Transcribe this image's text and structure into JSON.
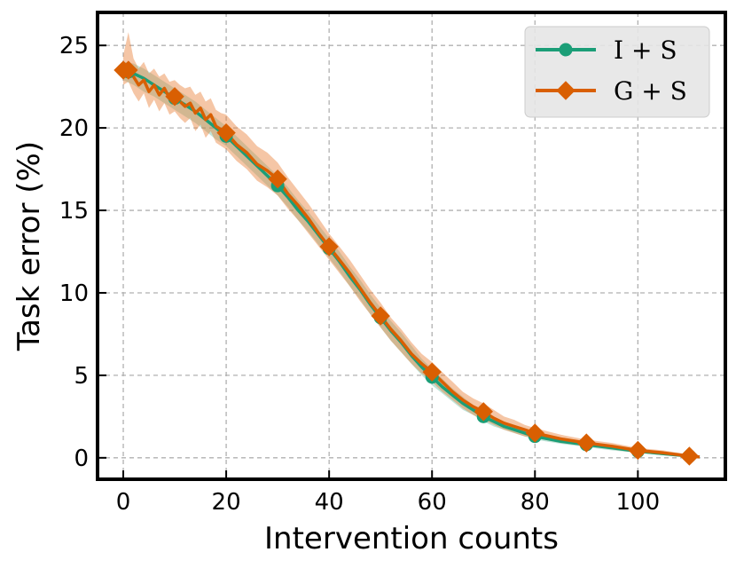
{
  "chart_data": {
    "type": "line",
    "title": "",
    "xlabel": "Intervention counts",
    "ylabel": "Task error (%)",
    "xlim": [
      -5,
      117
    ],
    "ylim": [
      -1.3,
      27
    ],
    "xticks": [
      0,
      20,
      40,
      60,
      80,
      100
    ],
    "yticks": [
      0,
      5,
      10,
      15,
      20,
      25
    ],
    "grid": true,
    "legend_position": "top-right",
    "series": [
      {
        "name": "I + S",
        "color": "#1b9e77",
        "marker": "circle",
        "x": [
          0,
          1,
          10,
          20,
          30,
          40,
          50,
          60,
          70,
          80,
          90,
          100,
          110
        ],
        "y": [
          23.5,
          23.4,
          21.8,
          19.5,
          16.5,
          12.7,
          8.5,
          4.9,
          2.5,
          1.3,
          0.8,
          0.4,
          0.1
        ],
        "line_x": [
          0,
          2,
          4,
          6,
          8,
          10,
          12,
          14,
          16,
          18,
          20,
          22,
          24,
          26,
          28,
          30,
          32,
          34,
          36,
          38,
          40,
          42,
          44,
          46,
          48,
          50,
          52,
          54,
          56,
          58,
          60,
          62,
          64,
          66,
          68,
          70,
          72,
          74,
          76,
          78,
          80,
          85,
          90,
          95,
          100,
          105,
          110,
          112
        ],
        "line_y": [
          23.5,
          23.3,
          23.0,
          22.6,
          22.2,
          21.8,
          21.4,
          21.0,
          20.5,
          20.0,
          19.5,
          18.9,
          18.3,
          17.7,
          17.1,
          16.5,
          15.8,
          15.0,
          14.3,
          13.5,
          12.7,
          11.9,
          11.0,
          10.2,
          9.3,
          8.5,
          7.7,
          7.0,
          6.2,
          5.5,
          4.9,
          4.3,
          3.8,
          3.3,
          2.9,
          2.5,
          2.2,
          1.9,
          1.7,
          1.5,
          1.3,
          1.0,
          0.8,
          0.6,
          0.4,
          0.25,
          0.1,
          0.05
        ],
        "band_lower": [
          22.9,
          22.6,
          22.2,
          21.9,
          21.5,
          21.1,
          20.7,
          20.3,
          19.8,
          19.3,
          18.9,
          18.3,
          17.7,
          17.1,
          16.5,
          15.9,
          15.2,
          14.4,
          13.7,
          12.9,
          12.1,
          11.3,
          10.4,
          9.6,
          8.7,
          7.9,
          7.1,
          6.4,
          5.7,
          5.0,
          4.4,
          3.9,
          3.4,
          2.9,
          2.6,
          2.2,
          1.9,
          1.7,
          1.5,
          1.3,
          1.1,
          0.85,
          0.65,
          0.45,
          0.3,
          0.15,
          0.03,
          0.0
        ],
        "band_upper": [
          24.0,
          23.9,
          23.6,
          23.2,
          22.8,
          22.4,
          22.0,
          21.6,
          21.1,
          20.6,
          20.1,
          19.5,
          18.9,
          18.3,
          17.7,
          17.1,
          16.4,
          15.6,
          14.9,
          14.1,
          13.3,
          12.5,
          11.6,
          10.8,
          9.9,
          9.1,
          8.3,
          7.6,
          6.8,
          6.0,
          5.4,
          4.8,
          4.2,
          3.7,
          3.2,
          2.8,
          2.5,
          2.2,
          1.9,
          1.7,
          1.5,
          1.15,
          0.95,
          0.75,
          0.5,
          0.35,
          0.17,
          0.1
        ]
      },
      {
        "name": "G + S",
        "color": "#d95f02",
        "marker": "diamond",
        "x": [
          0,
          1,
          10,
          20,
          30,
          40,
          50,
          60,
          70,
          80,
          90,
          100,
          110
        ],
        "y": [
          23.5,
          23.5,
          21.9,
          19.7,
          16.9,
          12.8,
          8.6,
          5.2,
          2.8,
          1.5,
          0.9,
          0.45,
          0.1
        ],
        "line_x": [
          0,
          1,
          2,
          3,
          4,
          5,
          6,
          7,
          8,
          9,
          10,
          11,
          12,
          13,
          14,
          15,
          16,
          17,
          18,
          19,
          20,
          22,
          24,
          26,
          28,
          30,
          32,
          34,
          36,
          38,
          40,
          42,
          44,
          46,
          48,
          50,
          52,
          54,
          56,
          58,
          60,
          62,
          64,
          66,
          68,
          70,
          72,
          74,
          76,
          78,
          80,
          85,
          90,
          95,
          100,
          105,
          110,
          112
        ],
        "line_y": [
          23.5,
          23.5,
          23.1,
          22.6,
          22.9,
          22.2,
          22.6,
          22.0,
          22.4,
          21.8,
          21.9,
          21.6,
          21.3,
          21.5,
          20.9,
          21.2,
          20.5,
          20.8,
          20.1,
          19.9,
          19.7,
          19.0,
          18.5,
          17.8,
          17.4,
          16.9,
          16.0,
          15.3,
          14.5,
          13.6,
          12.8,
          12.0,
          11.2,
          10.3,
          9.4,
          8.6,
          7.8,
          7.1,
          6.3,
          5.7,
          5.2,
          4.6,
          4.0,
          3.5,
          3.1,
          2.8,
          2.4,
          2.1,
          1.9,
          1.7,
          1.5,
          1.15,
          0.9,
          0.7,
          0.45,
          0.3,
          0.1,
          0.05
        ],
        "band_lower": [
          22.6,
          22.8,
          22.1,
          21.6,
          22.1,
          21.2,
          21.7,
          21.0,
          21.5,
          20.8,
          21.0,
          20.6,
          20.3,
          20.6,
          19.8,
          20.2,
          19.4,
          19.8,
          19.1,
          18.9,
          18.7,
          18.0,
          17.5,
          16.8,
          16.4,
          15.9,
          15.1,
          14.4,
          13.6,
          12.8,
          12.0,
          11.2,
          10.4,
          9.5,
          8.7,
          7.9,
          7.1,
          6.4,
          5.7,
          5.1,
          4.6,
          4.0,
          3.5,
          3.0,
          2.6,
          2.3,
          2.0,
          1.7,
          1.5,
          1.3,
          1.2,
          0.9,
          0.7,
          0.5,
          0.3,
          0.15,
          0.02,
          0.0
        ],
        "band_upper": [
          24.4,
          25.8,
          24.2,
          23.6,
          24.0,
          23.3,
          23.6,
          23.1,
          23.3,
          22.8,
          22.9,
          22.6,
          22.4,
          22.5,
          22.0,
          22.2,
          21.6,
          21.8,
          21.1,
          20.9,
          20.8,
          20.1,
          19.6,
          18.9,
          18.5,
          17.9,
          17.0,
          16.2,
          15.4,
          14.5,
          13.6,
          12.8,
          12.0,
          11.1,
          10.2,
          9.4,
          8.5,
          7.8,
          7.0,
          6.3,
          5.8,
          5.2,
          4.6,
          4.0,
          3.6,
          3.3,
          2.9,
          2.5,
          2.3,
          2.0,
          1.8,
          1.4,
          1.1,
          0.9,
          0.6,
          0.45,
          0.2,
          0.1
        ]
      }
    ]
  }
}
